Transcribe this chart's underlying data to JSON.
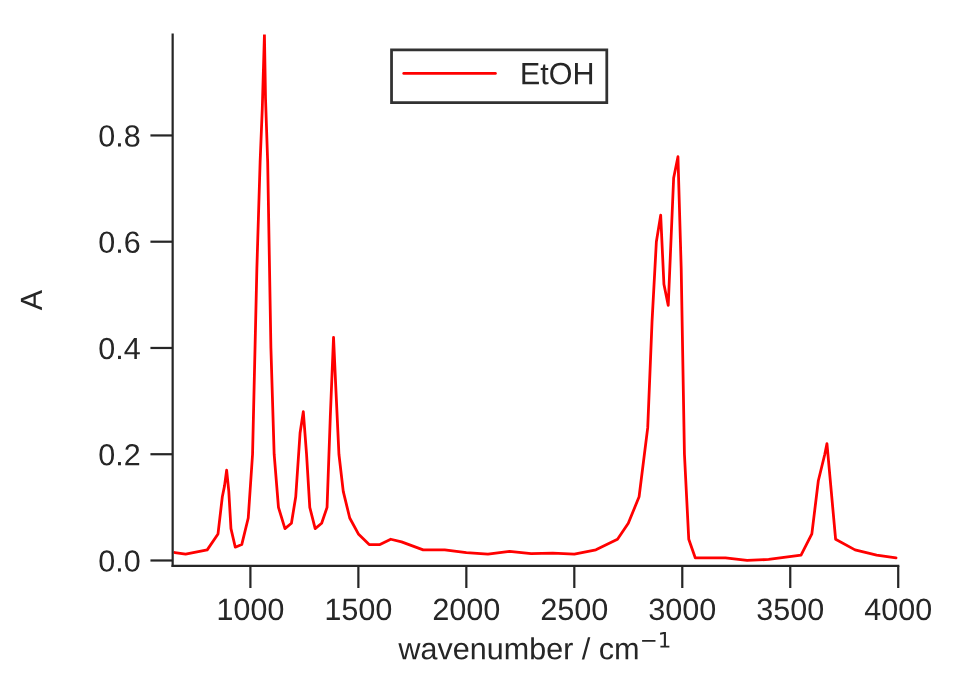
{
  "chart_data": {
    "type": "line",
    "xlabel": "wavenumber / cm$^{−1}$",
    "ylabel": "A",
    "xlim": [
      640,
      4000
    ],
    "ylim": [
      -0.01,
      0.99
    ],
    "xticks": [
      1000,
      1500,
      2000,
      2500,
      3000,
      3500,
      4000
    ],
    "yticks": [
      {
        "value": 0,
        "label": "0.0"
      },
      0.2,
      0.4,
      0.6,
      0.8
    ],
    "grid": false,
    "legend": "top",
    "line_style": "solid",
    "marker": "none",
    "series": [
      {
        "name": "EtOH",
        "color": "#ff0000",
        "x": [
          650,
          700,
          800,
          850,
          870,
          880,
          890,
          900,
          910,
          930,
          960,
          990,
          1010,
          1030,
          1045,
          1055,
          1065,
          1070,
          1080,
          1095,
          1110,
          1130,
          1160,
          1190,
          1210,
          1230,
          1245,
          1260,
          1275,
          1300,
          1330,
          1355,
          1370,
          1385,
          1395,
          1410,
          1430,
          1460,
          1500,
          1550,
          1600,
          1650,
          1700,
          1800,
          1900,
          2000,
          2100,
          2200,
          2300,
          2400,
          2500,
          2600,
          2700,
          2750,
          2800,
          2840,
          2860,
          2880,
          2900,
          2915,
          2935,
          2960,
          2980,
          2995,
          3010,
          3030,
          3060,
          3200,
          3300,
          3400,
          3550,
          3600,
          3630,
          3660,
          3670,
          3690,
          3710,
          3800,
          3900,
          3990
        ],
        "values": [
          0.015,
          0.012,
          0.02,
          0.05,
          0.12,
          0.14,
          0.17,
          0.13,
          0.06,
          0.025,
          0.03,
          0.08,
          0.2,
          0.55,
          0.75,
          0.85,
          0.99,
          0.87,
          0.75,
          0.4,
          0.2,
          0.1,
          0.06,
          0.07,
          0.12,
          0.24,
          0.28,
          0.2,
          0.1,
          0.06,
          0.07,
          0.1,
          0.27,
          0.42,
          0.33,
          0.2,
          0.13,
          0.08,
          0.05,
          0.03,
          0.03,
          0.04,
          0.035,
          0.02,
          0.02,
          0.015,
          0.012,
          0.017,
          0.013,
          0.014,
          0.012,
          0.02,
          0.04,
          0.07,
          0.12,
          0.25,
          0.45,
          0.6,
          0.65,
          0.52,
          0.48,
          0.72,
          0.76,
          0.55,
          0.2,
          0.04,
          0.005,
          0.005,
          0.0,
          0.002,
          0.01,
          0.05,
          0.15,
          0.2,
          0.22,
          0.13,
          0.04,
          0.02,
          0.01,
          0.005
        ]
      }
    ]
  }
}
